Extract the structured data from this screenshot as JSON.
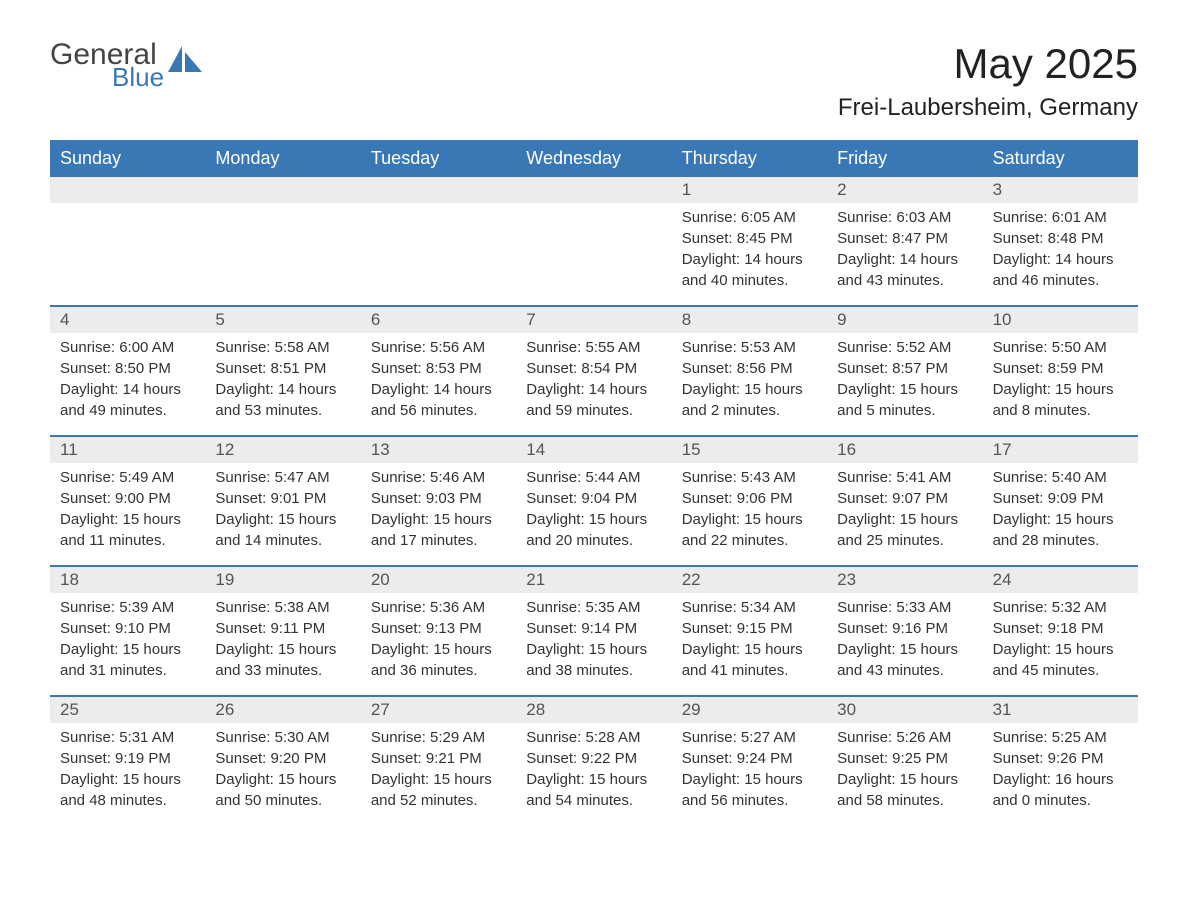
{
  "logo": {
    "general": "General",
    "blue": "Blue"
  },
  "title": "May 2025",
  "subtitle": "Frei-Laubersheim, Germany",
  "colors": {
    "header_bg": "#3a78b5",
    "header_text": "#ffffff",
    "daynum_bg": "#ececec",
    "daynum_text": "#555555",
    "body_text": "#333333",
    "border": "#3a78b5",
    "background": "#ffffff"
  },
  "typography": {
    "title_fontsize": 42,
    "subtitle_fontsize": 24,
    "header_fontsize": 18,
    "daynum_fontsize": 17,
    "content_fontsize": 15
  },
  "weekdays": [
    "Sunday",
    "Monday",
    "Tuesday",
    "Wednesday",
    "Thursday",
    "Friday",
    "Saturday"
  ],
  "weeks": [
    [
      null,
      null,
      null,
      null,
      {
        "n": "1",
        "sr": "Sunrise: 6:05 AM",
        "ss": "Sunset: 8:45 PM",
        "d1": "Daylight: 14 hours",
        "d2": "and 40 minutes."
      },
      {
        "n": "2",
        "sr": "Sunrise: 6:03 AM",
        "ss": "Sunset: 8:47 PM",
        "d1": "Daylight: 14 hours",
        "d2": "and 43 minutes."
      },
      {
        "n": "3",
        "sr": "Sunrise: 6:01 AM",
        "ss": "Sunset: 8:48 PM",
        "d1": "Daylight: 14 hours",
        "d2": "and 46 minutes."
      }
    ],
    [
      {
        "n": "4",
        "sr": "Sunrise: 6:00 AM",
        "ss": "Sunset: 8:50 PM",
        "d1": "Daylight: 14 hours",
        "d2": "and 49 minutes."
      },
      {
        "n": "5",
        "sr": "Sunrise: 5:58 AM",
        "ss": "Sunset: 8:51 PM",
        "d1": "Daylight: 14 hours",
        "d2": "and 53 minutes."
      },
      {
        "n": "6",
        "sr": "Sunrise: 5:56 AM",
        "ss": "Sunset: 8:53 PM",
        "d1": "Daylight: 14 hours",
        "d2": "and 56 minutes."
      },
      {
        "n": "7",
        "sr": "Sunrise: 5:55 AM",
        "ss": "Sunset: 8:54 PM",
        "d1": "Daylight: 14 hours",
        "d2": "and 59 minutes."
      },
      {
        "n": "8",
        "sr": "Sunrise: 5:53 AM",
        "ss": "Sunset: 8:56 PM",
        "d1": "Daylight: 15 hours",
        "d2": "and 2 minutes."
      },
      {
        "n": "9",
        "sr": "Sunrise: 5:52 AM",
        "ss": "Sunset: 8:57 PM",
        "d1": "Daylight: 15 hours",
        "d2": "and 5 minutes."
      },
      {
        "n": "10",
        "sr": "Sunrise: 5:50 AM",
        "ss": "Sunset: 8:59 PM",
        "d1": "Daylight: 15 hours",
        "d2": "and 8 minutes."
      }
    ],
    [
      {
        "n": "11",
        "sr": "Sunrise: 5:49 AM",
        "ss": "Sunset: 9:00 PM",
        "d1": "Daylight: 15 hours",
        "d2": "and 11 minutes."
      },
      {
        "n": "12",
        "sr": "Sunrise: 5:47 AM",
        "ss": "Sunset: 9:01 PM",
        "d1": "Daylight: 15 hours",
        "d2": "and 14 minutes."
      },
      {
        "n": "13",
        "sr": "Sunrise: 5:46 AM",
        "ss": "Sunset: 9:03 PM",
        "d1": "Daylight: 15 hours",
        "d2": "and 17 minutes."
      },
      {
        "n": "14",
        "sr": "Sunrise: 5:44 AM",
        "ss": "Sunset: 9:04 PM",
        "d1": "Daylight: 15 hours",
        "d2": "and 20 minutes."
      },
      {
        "n": "15",
        "sr": "Sunrise: 5:43 AM",
        "ss": "Sunset: 9:06 PM",
        "d1": "Daylight: 15 hours",
        "d2": "and 22 minutes."
      },
      {
        "n": "16",
        "sr": "Sunrise: 5:41 AM",
        "ss": "Sunset: 9:07 PM",
        "d1": "Daylight: 15 hours",
        "d2": "and 25 minutes."
      },
      {
        "n": "17",
        "sr": "Sunrise: 5:40 AM",
        "ss": "Sunset: 9:09 PM",
        "d1": "Daylight: 15 hours",
        "d2": "and 28 minutes."
      }
    ],
    [
      {
        "n": "18",
        "sr": "Sunrise: 5:39 AM",
        "ss": "Sunset: 9:10 PM",
        "d1": "Daylight: 15 hours",
        "d2": "and 31 minutes."
      },
      {
        "n": "19",
        "sr": "Sunrise: 5:38 AM",
        "ss": "Sunset: 9:11 PM",
        "d1": "Daylight: 15 hours",
        "d2": "and 33 minutes."
      },
      {
        "n": "20",
        "sr": "Sunrise: 5:36 AM",
        "ss": "Sunset: 9:13 PM",
        "d1": "Daylight: 15 hours",
        "d2": "and 36 minutes."
      },
      {
        "n": "21",
        "sr": "Sunrise: 5:35 AM",
        "ss": "Sunset: 9:14 PM",
        "d1": "Daylight: 15 hours",
        "d2": "and 38 minutes."
      },
      {
        "n": "22",
        "sr": "Sunrise: 5:34 AM",
        "ss": "Sunset: 9:15 PM",
        "d1": "Daylight: 15 hours",
        "d2": "and 41 minutes."
      },
      {
        "n": "23",
        "sr": "Sunrise: 5:33 AM",
        "ss": "Sunset: 9:16 PM",
        "d1": "Daylight: 15 hours",
        "d2": "and 43 minutes."
      },
      {
        "n": "24",
        "sr": "Sunrise: 5:32 AM",
        "ss": "Sunset: 9:18 PM",
        "d1": "Daylight: 15 hours",
        "d2": "and 45 minutes."
      }
    ],
    [
      {
        "n": "25",
        "sr": "Sunrise: 5:31 AM",
        "ss": "Sunset: 9:19 PM",
        "d1": "Daylight: 15 hours",
        "d2": "and 48 minutes."
      },
      {
        "n": "26",
        "sr": "Sunrise: 5:30 AM",
        "ss": "Sunset: 9:20 PM",
        "d1": "Daylight: 15 hours",
        "d2": "and 50 minutes."
      },
      {
        "n": "27",
        "sr": "Sunrise: 5:29 AM",
        "ss": "Sunset: 9:21 PM",
        "d1": "Daylight: 15 hours",
        "d2": "and 52 minutes."
      },
      {
        "n": "28",
        "sr": "Sunrise: 5:28 AM",
        "ss": "Sunset: 9:22 PM",
        "d1": "Daylight: 15 hours",
        "d2": "and 54 minutes."
      },
      {
        "n": "29",
        "sr": "Sunrise: 5:27 AM",
        "ss": "Sunset: 9:24 PM",
        "d1": "Daylight: 15 hours",
        "d2": "and 56 minutes."
      },
      {
        "n": "30",
        "sr": "Sunrise: 5:26 AM",
        "ss": "Sunset: 9:25 PM",
        "d1": "Daylight: 15 hours",
        "d2": "and 58 minutes."
      },
      {
        "n": "31",
        "sr": "Sunrise: 5:25 AM",
        "ss": "Sunset: 9:26 PM",
        "d1": "Daylight: 16 hours",
        "d2": "and 0 minutes."
      }
    ]
  ]
}
